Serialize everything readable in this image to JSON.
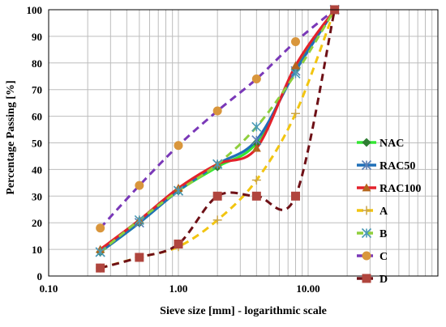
{
  "chart_data": {
    "type": "line",
    "xscale": "log",
    "xlim": [
      0.1,
      100
    ],
    "ylim": [
      0,
      100
    ],
    "xticks": [
      0.1,
      1,
      10,
      100
    ],
    "xtick_labels": [
      "0.10",
      "1.00",
      "10.00",
      ""
    ],
    "yticks": [
      0,
      10,
      20,
      30,
      40,
      50,
      60,
      70,
      80,
      90,
      100
    ],
    "ytick_labels": [
      "0",
      "10",
      "20",
      "30",
      "40",
      "50",
      "60",
      "70",
      "80",
      "90",
      "100"
    ],
    "xlabel": "Sieve size [mm] - logarithmic scale",
    "ylabel": "Percentage Passing [%]",
    "grid": true,
    "legend_position": "right",
    "series": [
      {
        "name": "NAC",
        "color": "#33e633",
        "dash": "solid",
        "marker": "diamond",
        "marker_color": "#2e7d32",
        "x": [
          0.25,
          0.5,
          1,
          2,
          4,
          8,
          16
        ],
        "y": [
          9,
          20,
          32,
          41,
          50,
          78,
          100
        ]
      },
      {
        "name": "RAC50",
        "color": "#1f6fb8",
        "dash": "solid",
        "marker": "star",
        "marker_color": "#5b7fb5",
        "x": [
          0.25,
          0.5,
          1,
          2,
          4,
          8,
          16
        ],
        "y": [
          9,
          20,
          32,
          42,
          51,
          77,
          100
        ]
      },
      {
        "name": "RAC100",
        "color": "#e3222b",
        "dash": "solid",
        "marker": "triangle",
        "marker_color": "#b5651d",
        "x": [
          0.25,
          0.5,
          1,
          2,
          4,
          8,
          16
        ],
        "y": [
          10,
          21,
          33,
          42,
          48,
          79,
          100
        ]
      },
      {
        "name": "A",
        "color": "#f2c511",
        "dash": "dashed",
        "marker": "plus",
        "marker_color": "#c9a44a",
        "x": [
          0.25,
          0.5,
          1,
          2,
          4,
          8,
          16
        ],
        "y": [
          3,
          7,
          11,
          21,
          36,
          61,
          100
        ]
      },
      {
        "name": "B",
        "color": "#8fcf3c",
        "dash": "dashed",
        "marker": "star",
        "marker_color": "#4a9ab5",
        "x": [
          0.25,
          0.5,
          1,
          2,
          4,
          8,
          16
        ],
        "y": [
          9,
          21,
          32,
          42,
          56,
          76,
          100
        ]
      },
      {
        "name": "C",
        "color": "#7a38b8",
        "dash": "dashed",
        "marker": "circle",
        "marker_color": "#d9963c",
        "x": [
          0.25,
          0.5,
          1,
          2,
          4,
          8,
          16
        ],
        "y": [
          18,
          34,
          49,
          62,
          74,
          88,
          100
        ]
      },
      {
        "name": "D",
        "color": "#6e1016",
        "dash": "dashed",
        "marker": "square",
        "marker_color": "#b0453e",
        "x": [
          0.25,
          0.5,
          1,
          2,
          4,
          8,
          16
        ],
        "y": [
          3,
          7,
          12,
          30,
          30,
          30,
          100
        ]
      }
    ]
  }
}
